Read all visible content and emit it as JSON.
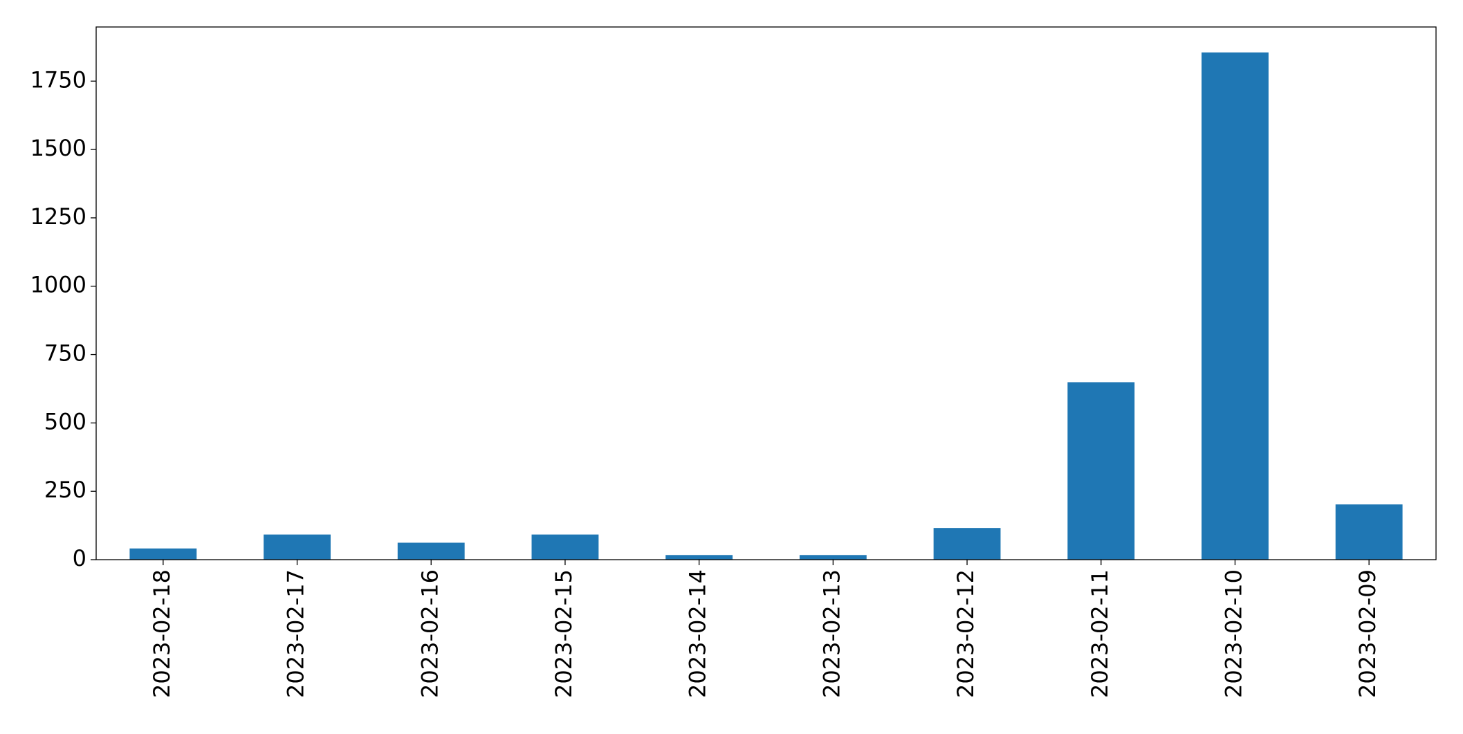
{
  "chart_data": {
    "type": "bar",
    "categories": [
      "2023-02-18",
      "2023-02-17",
      "2023-02-16",
      "2023-02-15",
      "2023-02-14",
      "2023-02-13",
      "2023-02-12",
      "2023-02-11",
      "2023-02-10",
      "2023-02-09"
    ],
    "values": [
      41,
      92,
      62,
      92,
      17,
      17,
      116,
      649,
      1855,
      202
    ],
    "color": "#1f77b4",
    "ylim": [
      0,
      1948
    ],
    "yticks": [
      0,
      250,
      500,
      750,
      1000,
      1250,
      1500,
      1750
    ],
    "grid": false
  }
}
